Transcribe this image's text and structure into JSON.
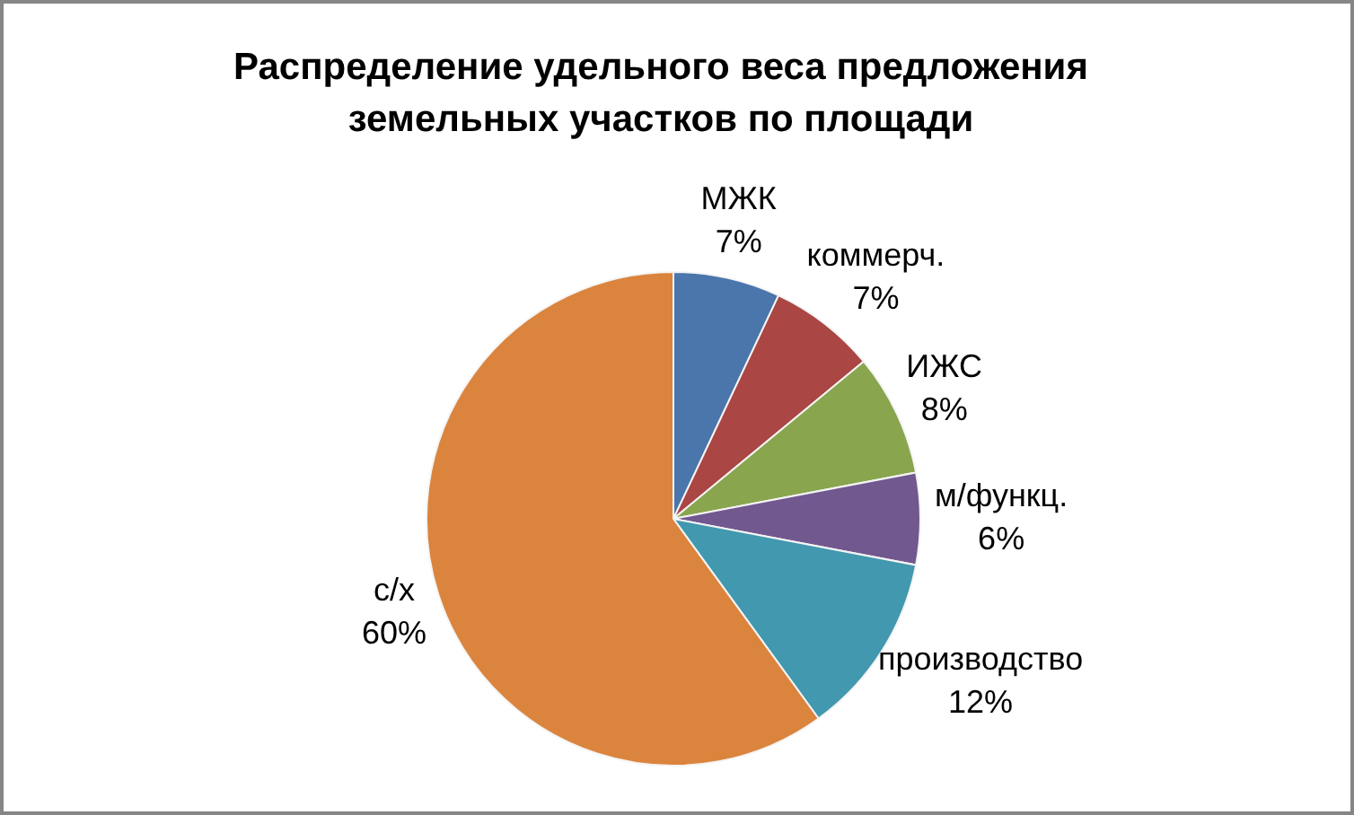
{
  "chart_data": {
    "type": "pie",
    "title": "Распределение удельного веса предложения земельных участков по площади",
    "categories": [
      "МЖК",
      "коммерч.",
      "ИЖС",
      "м/функц.",
      "производство",
      "с/х"
    ],
    "values": [
      7,
      7,
      8,
      6,
      12,
      60
    ],
    "value_labels": [
      "7%",
      "7%",
      "8%",
      "6%",
      "12%",
      "60%"
    ],
    "colors": [
      "#4a76ac",
      "#aa4643",
      "#89a54e",
      "#71588f",
      "#4198af",
      "#db843d"
    ]
  }
}
